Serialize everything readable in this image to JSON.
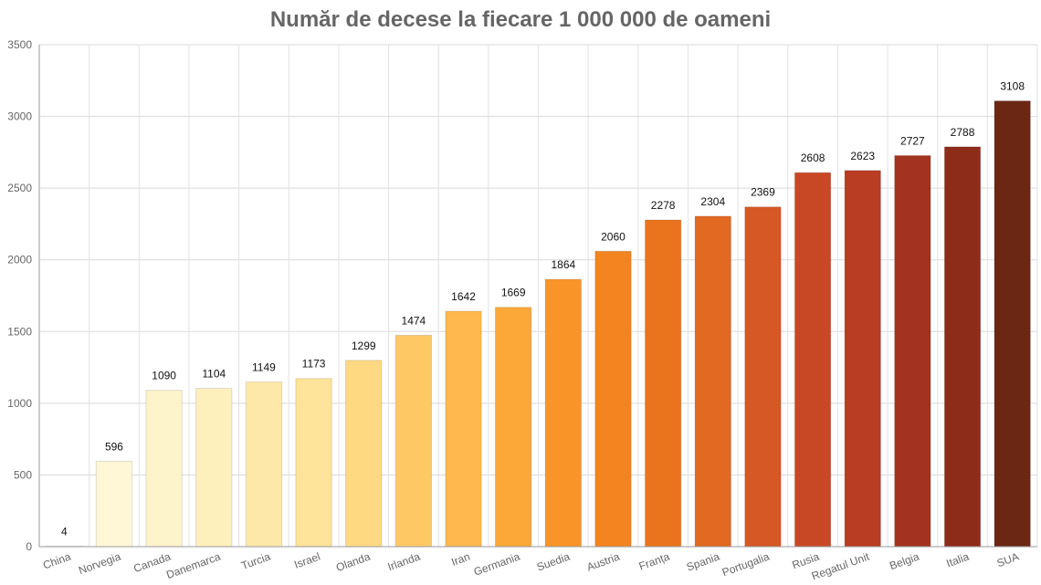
{
  "chart_data": {
    "type": "bar",
    "title": "Număr de decese la fiecare 1 000 000 de oameni",
    "xlabel": "",
    "ylabel": "",
    "ylim": [
      0,
      3500
    ],
    "yticks": [
      "0",
      "500",
      "1000",
      "1500",
      "2000",
      "2500",
      "3000",
      "3500"
    ],
    "grid": true,
    "categories": [
      "China",
      "Norvegia",
      "Canada",
      "Danemarca",
      "Turcia",
      "Israel",
      "Olanda",
      "Irlanda",
      "Iran",
      "Germania",
      "Suedia",
      "Austria",
      "Franța",
      "Spania",
      "Portugalia",
      "Rusia",
      "Regatul Unit",
      "Belgia",
      "Italia",
      "SUA"
    ],
    "values": [
      4,
      596,
      1090,
      1104,
      1149,
      1173,
      1299,
      1474,
      1642,
      1669,
      1864,
      2060,
      2278,
      2304,
      2369,
      2608,
      2623,
      2727,
      2788,
      3108
    ],
    "data_labels": [
      "4",
      "596",
      "1090",
      "1104",
      "1149",
      "1173",
      "1299",
      "1474",
      "1642",
      "1669",
      "1864",
      "2060",
      "2278",
      "2304",
      "2369",
      "2608",
      "2623",
      "2727",
      "2788",
      "3108"
    ],
    "colors": [
      "#fffce6",
      "#fff7d6",
      "#fef4cc",
      "#fef0bc",
      "#fee8a9",
      "#fee39a",
      "#fed982",
      "#fec965",
      "#feb84e",
      "#fca838",
      "#f99528",
      "#f3841f",
      "#ea741e",
      "#e16922",
      "#d65824",
      "#c84825",
      "#b93d23",
      "#a33320",
      "#8e2c1a",
      "#6b2714"
    ],
    "color_note": "sequential yellow-to-brown fill, one color per bar"
  }
}
